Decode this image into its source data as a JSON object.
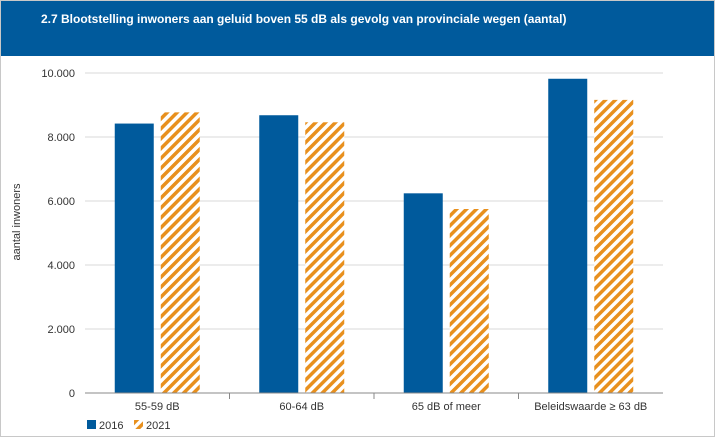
{
  "title": "2.7 Blootstelling inwoners aan geluid boven 55 dB als gevolg van provinciale wegen (aantal)",
  "colors": {
    "header": "#005a9c",
    "series_2016": "#005a9c",
    "series_2021": "#e8901e"
  },
  "chart_data": {
    "type": "bar",
    "title": "2.7 Blootstelling inwoners aan geluid boven 55 dB als gevolg van provinciale wegen (aantal)",
    "xlabel": "",
    "ylabel": "aantal inwoners",
    "ylim": [
      0,
      10000
    ],
    "yticks": [
      "0",
      "2.000",
      "4.000",
      "6.000",
      "8.000",
      "10.000"
    ],
    "categories": [
      "55-59 dB",
      "60-64 dB",
      "65 dB of meer",
      "Beleidswaarde ≥ 63 dB"
    ],
    "series": [
      {
        "name": "2016",
        "pattern": "solid",
        "values": [
          8420,
          8680,
          6240,
          9820
        ]
      },
      {
        "name": "2021",
        "pattern": "hatched",
        "values": [
          8770,
          8460,
          5750,
          9160
        ]
      }
    ],
    "grid": true,
    "legend_position": "bottom-left"
  }
}
